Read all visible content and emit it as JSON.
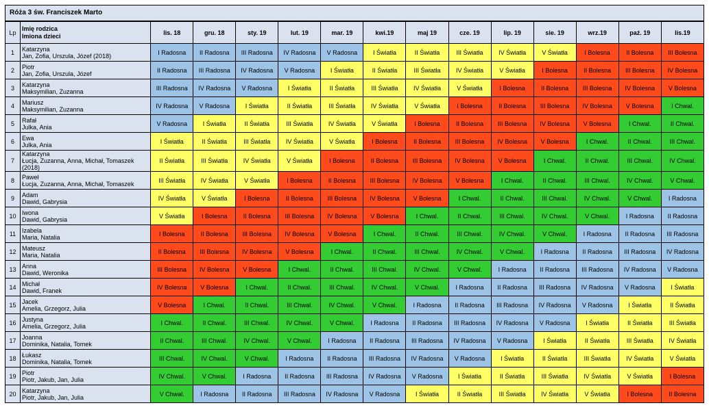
{
  "title": "Róża 3 św. Franciszek Marto",
  "headers": {
    "lp": "Lp",
    "name_line1": "Imię rodzica",
    "name_line2": "Imiona dzieci",
    "months": [
      "lis. 18",
      "gru. 18",
      "sty. 19",
      "lut. 19",
      "mar. 19",
      "kwi.19",
      "maj 19",
      "cze. 19",
      "lip. 19",
      "sie. 19",
      "wrz.19",
      "paź. 19",
      "lis.19"
    ]
  },
  "colors": {
    "header_bg": "#d9e2ee",
    "Radosna": "#9dc3e6",
    "Światła": "#ffff66",
    "Bolesna": "#ff4a1c",
    "Chwal.": "#33cc33"
  },
  "rows": [
    {
      "lp": "1",
      "parent": "Katarzyna",
      "children": "Jan, Zofia, Urszula, Józef (2018)",
      "cells": [
        "I Radosna",
        "II Radosna",
        "III Radosna",
        "IV Radosna",
        "V Radosna",
        "I Światła",
        "II Światła",
        "III Światła",
        "IV Światła",
        "V Światła",
        "I Bolesna",
        "II Bolesna",
        "III Bolesna"
      ]
    },
    {
      "lp": "2",
      "parent": "Piotr",
      "children": "Jan, Zofia, Urszula, Józef",
      "cells": [
        "II Radosna",
        "III Radosna",
        "IV Radosna",
        "V Radosna",
        "I Światła",
        "II Światła",
        "III Światła",
        "IV Światła",
        "V Światła",
        "I Bolesna",
        "II Bolesna",
        "III Bolesna",
        "IV Bolesna"
      ]
    },
    {
      "lp": "3",
      "parent": "Katarzyna",
      "children": "Maksymilian, Zuzanna",
      "cells": [
        "III Radosna",
        "IV Radosna",
        "V Radosna",
        "I Światła",
        "II Światła",
        "III Światła",
        "IV Światła",
        "V Światła",
        "I Bolesna",
        "II Bolesna",
        "III Bolesna",
        "IV Bolesna",
        "V Bolesna"
      ]
    },
    {
      "lp": "4",
      "parent": "Mariusz",
      "children": "Maksymilian, Zuzanna",
      "cells": [
        "IV Radosna",
        "V Radosna",
        "I Światła",
        "II Światła",
        "III Światła",
        "IV Światła",
        "V Światła",
        "I Bolesna",
        "II Bolesna",
        "III Bolesna",
        "IV Bolesna",
        "V Bolesna",
        "I Chwal."
      ]
    },
    {
      "lp": "5",
      "parent": "Rafał",
      "children": "Julka, Ania",
      "cells": [
        "V Radosna",
        "I Światła",
        "II Światła",
        "III Światła",
        "IV Światła",
        "V Światła",
        "I Bolesna",
        "II Bolesna",
        "III Bolesna",
        "IV Bolesna",
        "V Bolesna",
        "I Chwal.",
        "II Chwal."
      ]
    },
    {
      "lp": "6",
      "parent": "Ewa",
      "children": "Julka, Ania",
      "cells": [
        "I Światła",
        "II Światła",
        "III Światła",
        "IV Światła",
        "V Światła",
        "I Bolesna",
        "II Bolesna",
        "III Bolesna",
        "IV Bolesna",
        "V Bolesna",
        "I Chwal.",
        "II Chwal.",
        "III Chwal."
      ]
    },
    {
      "lp": "7",
      "parent": "Katarzyna",
      "children": "Łucja, Zuzanna, Anna, Michał, Tomaszek (2018)",
      "cells": [
        "II Światła",
        "III Światła",
        "IV Światła",
        "V Światła",
        "I Bolesna",
        "II Bolesna",
        "III Bolesna",
        "IV Bolesna",
        "V Bolesna",
        "I Chwal.",
        "II Chwal.",
        "III Chwal.",
        "IV Chwal."
      ]
    },
    {
      "lp": "8",
      "parent": "Paweł",
      "children": "Łucja, Zuzanna, Anna, Michał, Tomaszek",
      "cells": [
        "III Światła",
        "IV Światła",
        "V Światła",
        "I Bolesna",
        "II Bolesna",
        "III Bolesna",
        "IV Bolesna",
        "V Bolesna",
        "I Chwal.",
        "II Chwal.",
        "III Chwal.",
        "IV Chwal.",
        "V Chwal."
      ]
    },
    {
      "lp": "9",
      "parent": "Adam",
      "children": "Dawid, Gabrysia",
      "cells": [
        "IV Światła",
        "V Światła",
        "I Bolesna",
        "II Bolesna",
        "III Bolesna",
        "IV Bolesna",
        "V Bolesna",
        "I Chwal.",
        "II Chwal.",
        "III Chwal.",
        "IV Chwal.",
        "V Chwal.",
        "I Radosna"
      ]
    },
    {
      "lp": "10",
      "parent": "Iwona",
      "children": "Dawid, Gabrysia",
      "cells": [
        "V Światła",
        "I Bolesna",
        "II Bolesna",
        "III Bolesna",
        "IV Bolesna",
        "V Bolesna",
        "I Chwal.",
        "II Chwal.",
        "III Chwal.",
        "IV Chwal.",
        "V Chwal.",
        "I Radosna",
        "II Radosna"
      ]
    },
    {
      "lp": "11",
      "parent": "Izabela",
      "children": "Maria, Natalia",
      "cells": [
        "I Bolesna",
        "II Bolesna",
        "III Bolesna",
        "IV Bolesna",
        "V Bolesna",
        "I Chwal.",
        "II Chwal.",
        "III Chwal.",
        "IV Chwal.",
        "V Chwal.",
        "I Radosna",
        "II Radosna",
        "III Radosna"
      ]
    },
    {
      "lp": "12",
      "parent": "Mateusz",
      "children": "Maria, Natalia",
      "cells": [
        "II Bolesna",
        "III Bolesna",
        "IV Bolesna",
        "V Bolesna",
        "I Chwal.",
        "II Chwal.",
        "III Chwal.",
        "IV Chwal.",
        "V Chwal.",
        "I Radosna",
        "II Radosna",
        "III Radosna",
        "IV Radosna"
      ]
    },
    {
      "lp": "13",
      "parent": "Anna",
      "children": "Dawid, Weronika",
      "cells": [
        "III Bolesna",
        "IV Bolesna",
        "V Bolesna",
        "I Chwal.",
        "II Chwal.",
        "III Chwal.",
        "IV Chwal.",
        "V Chwal.",
        "I Radosna",
        "II Radosna",
        "III Radosna",
        "IV Radosna",
        "V Radosna"
      ]
    },
    {
      "lp": "14",
      "parent": "Michał",
      "children": "Dawid, Franek",
      "cells": [
        "IV Bolesna",
        "V Bolesna",
        "I Chwal.",
        "II Chwal.",
        "III Chwal.",
        "IV Chwal.",
        "V Chwal.",
        "I Radosna",
        "II Radosna",
        "III Radosna",
        "IV Radosna",
        "V Radosna",
        "I Światła"
      ]
    },
    {
      "lp": "15",
      "parent": "Jacek",
      "children": "Amelia, Grzegorz, Julia",
      "cells": [
        "V Bolesna",
        "I Chwal.",
        "II Chwal.",
        "III Chwal.",
        "IV Chwal.",
        "V Chwal.",
        "I Radosna",
        "II Radosna",
        "III Radosna",
        "IV Radosna",
        "V Radosna",
        "I Światła",
        "II Światła"
      ]
    },
    {
      "lp": "16",
      "parent": "Justyna",
      "children": "Amelia, Grzegorz, Julia",
      "cells": [
        "I Chwal.",
        "II Chwal.",
        "III Chwal.",
        "IV Chwal.",
        "V Chwal.",
        "I Radosna",
        "II Radosna",
        "III Radosna",
        "IV Radosna",
        "V Radosna",
        "I Światła",
        "II Światła",
        "III Światła"
      ]
    },
    {
      "lp": "17",
      "parent": "Joanna",
      "children": "Dominika, Natalia, Tomek",
      "cells": [
        "II Chwal.",
        "III Chwal.",
        "IV Chwal.",
        "V Chwal.",
        "I Radosna",
        "II Radosna",
        "III Radosna",
        "IV Radosna",
        "V Radosna",
        "I Światła",
        "II Światła",
        "III Światła",
        "IV Światła"
      ]
    },
    {
      "lp": "18",
      "parent": "Łukasz",
      "children": "Dominika, Natalia, Tomek",
      "cells": [
        "III Chwal.",
        "IV Chwal.",
        "V Chwal.",
        "I Radosna",
        "II Radosna",
        "III Radosna",
        "IV Radosna",
        "V Radosna",
        "I Światła",
        "II Światła",
        "III Światła",
        "IV Światła",
        "V Światła"
      ]
    },
    {
      "lp": "19",
      "parent": "Piotr",
      "children": "Piotr, Jakub, Jan, Julia",
      "cells": [
        "IV Chwal.",
        "V Chwal.",
        "I Radosna",
        "II Radosna",
        "III Radosna",
        "IV Radosna",
        "V Radosna",
        "I Światła",
        "II Światła",
        "III Światła",
        "IV Światła",
        "V Światła",
        "I Bolesna"
      ]
    },
    {
      "lp": "20",
      "parent": "Katarzyna",
      "children": "Piotr, Jakub, Jan, Julia",
      "cells": [
        "V Chwal.",
        "I Radosna",
        "II Radosna",
        "III Radosna",
        "IV Radosna",
        "V Radosna",
        "I Światła",
        "II Światła",
        "III Światła",
        "IV Światła",
        "V Światła",
        "I Bolesna",
        "II Bolesna"
      ]
    }
  ]
}
